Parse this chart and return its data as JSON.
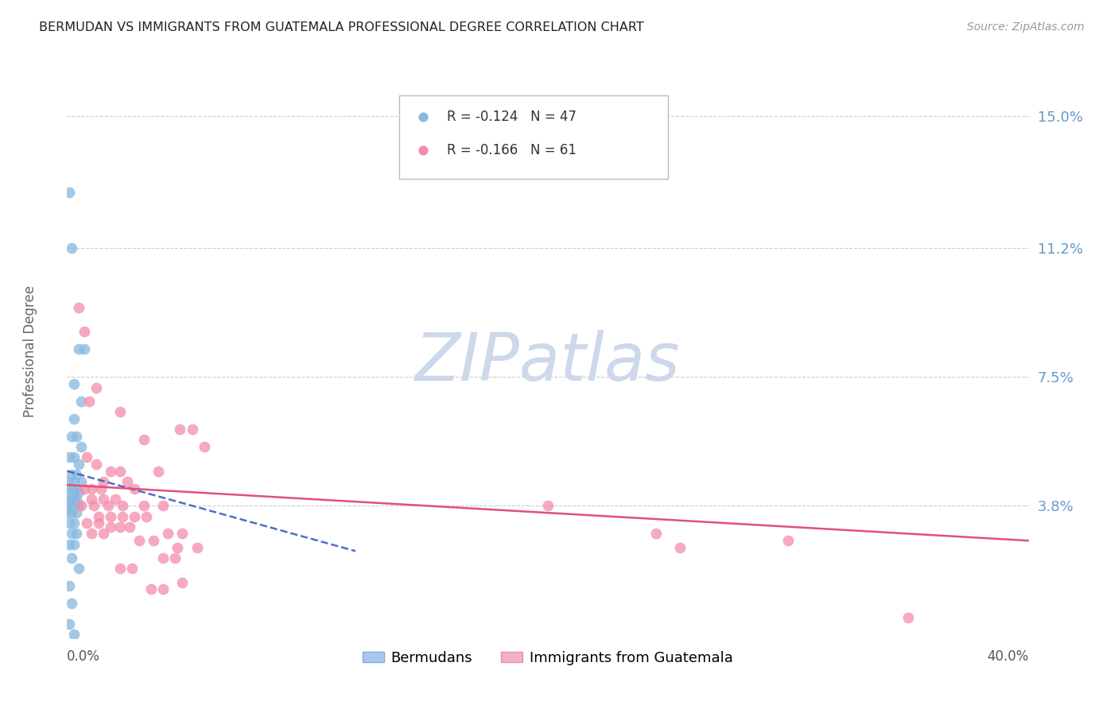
{
  "title": "BERMUDAN VS IMMIGRANTS FROM GUATEMALA PROFESSIONAL DEGREE CORRELATION CHART",
  "source": "Source: ZipAtlas.com",
  "ylabel": "Professional Degree",
  "xlim": [
    0.0,
    0.4
  ],
  "ylim": [
    0.0,
    0.165
  ],
  "ytick_vals": [
    0.038,
    0.075,
    0.112,
    0.15
  ],
  "ytick_labels": [
    "3.8%",
    "7.5%",
    "11.2%",
    "15.0%"
  ],
  "blue_color": "#85b8e0",
  "pink_color": "#f48caa",
  "trendline_blue_color": "#3355bb",
  "trendline_pink_color": "#e0507a",
  "watermark_text": "ZIPatlas",
  "watermark_color": "#cdd8ea",
  "blue_trendline_x": [
    0.0,
    0.12
  ],
  "blue_trendline_y": [
    0.048,
    0.025
  ],
  "pink_trendline_x": [
    0.0,
    0.4
  ],
  "pink_trendline_y": [
    0.044,
    0.028
  ],
  "blue_points": [
    [
      0.001,
      0.128
    ],
    [
      0.002,
      0.112
    ],
    [
      0.005,
      0.083
    ],
    [
      0.007,
      0.083
    ],
    [
      0.003,
      0.073
    ],
    [
      0.006,
      0.068
    ],
    [
      0.003,
      0.063
    ],
    [
      0.002,
      0.058
    ],
    [
      0.004,
      0.058
    ],
    [
      0.006,
      0.055
    ],
    [
      0.001,
      0.052
    ],
    [
      0.003,
      0.052
    ],
    [
      0.005,
      0.05
    ],
    [
      0.002,
      0.047
    ],
    [
      0.004,
      0.047
    ],
    [
      0.001,
      0.045
    ],
    [
      0.003,
      0.045
    ],
    [
      0.006,
      0.045
    ],
    [
      0.002,
      0.043
    ],
    [
      0.004,
      0.043
    ],
    [
      0.001,
      0.042
    ],
    [
      0.003,
      0.042
    ],
    [
      0.005,
      0.042
    ],
    [
      0.001,
      0.04
    ],
    [
      0.002,
      0.04
    ],
    [
      0.003,
      0.04
    ],
    [
      0.004,
      0.04
    ],
    [
      0.001,
      0.038
    ],
    [
      0.002,
      0.038
    ],
    [
      0.003,
      0.038
    ],
    [
      0.005,
      0.038
    ],
    [
      0.001,
      0.036
    ],
    [
      0.002,
      0.036
    ],
    [
      0.004,
      0.036
    ],
    [
      0.001,
      0.033
    ],
    [
      0.003,
      0.033
    ],
    [
      0.002,
      0.03
    ],
    [
      0.004,
      0.03
    ],
    [
      0.001,
      0.027
    ],
    [
      0.003,
      0.027
    ],
    [
      0.002,
      0.023
    ],
    [
      0.005,
      0.02
    ],
    [
      0.001,
      0.015
    ],
    [
      0.002,
      0.01
    ],
    [
      0.001,
      0.004
    ],
    [
      0.003,
      0.001
    ]
  ],
  "pink_points": [
    [
      0.005,
      0.095
    ],
    [
      0.007,
      0.088
    ],
    [
      0.012,
      0.072
    ],
    [
      0.009,
      0.068
    ],
    [
      0.022,
      0.065
    ],
    [
      0.047,
      0.06
    ],
    [
      0.052,
      0.06
    ],
    [
      0.032,
      0.057
    ],
    [
      0.057,
      0.055
    ],
    [
      0.008,
      0.052
    ],
    [
      0.012,
      0.05
    ],
    [
      0.018,
      0.048
    ],
    [
      0.022,
      0.048
    ],
    [
      0.038,
      0.048
    ],
    [
      0.015,
      0.045
    ],
    [
      0.025,
      0.045
    ],
    [
      0.007,
      0.043
    ],
    [
      0.01,
      0.043
    ],
    [
      0.014,
      0.043
    ],
    [
      0.028,
      0.043
    ],
    [
      0.01,
      0.04
    ],
    [
      0.015,
      0.04
    ],
    [
      0.02,
      0.04
    ],
    [
      0.006,
      0.038
    ],
    [
      0.011,
      0.038
    ],
    [
      0.017,
      0.038
    ],
    [
      0.023,
      0.038
    ],
    [
      0.032,
      0.038
    ],
    [
      0.04,
      0.038
    ],
    [
      0.013,
      0.035
    ],
    [
      0.018,
      0.035
    ],
    [
      0.023,
      0.035
    ],
    [
      0.028,
      0.035
    ],
    [
      0.033,
      0.035
    ],
    [
      0.008,
      0.033
    ],
    [
      0.013,
      0.033
    ],
    [
      0.018,
      0.032
    ],
    [
      0.022,
      0.032
    ],
    [
      0.026,
      0.032
    ],
    [
      0.01,
      0.03
    ],
    [
      0.015,
      0.03
    ],
    [
      0.042,
      0.03
    ],
    [
      0.048,
      0.03
    ],
    [
      0.03,
      0.028
    ],
    [
      0.036,
      0.028
    ],
    [
      0.046,
      0.026
    ],
    [
      0.054,
      0.026
    ],
    [
      0.04,
      0.023
    ],
    [
      0.045,
      0.023
    ],
    [
      0.022,
      0.02
    ],
    [
      0.027,
      0.02
    ],
    [
      0.048,
      0.016
    ],
    [
      0.035,
      0.014
    ],
    [
      0.04,
      0.014
    ],
    [
      0.2,
      0.038
    ],
    [
      0.245,
      0.03
    ],
    [
      0.255,
      0.026
    ],
    [
      0.3,
      0.028
    ],
    [
      0.35,
      0.006
    ]
  ]
}
